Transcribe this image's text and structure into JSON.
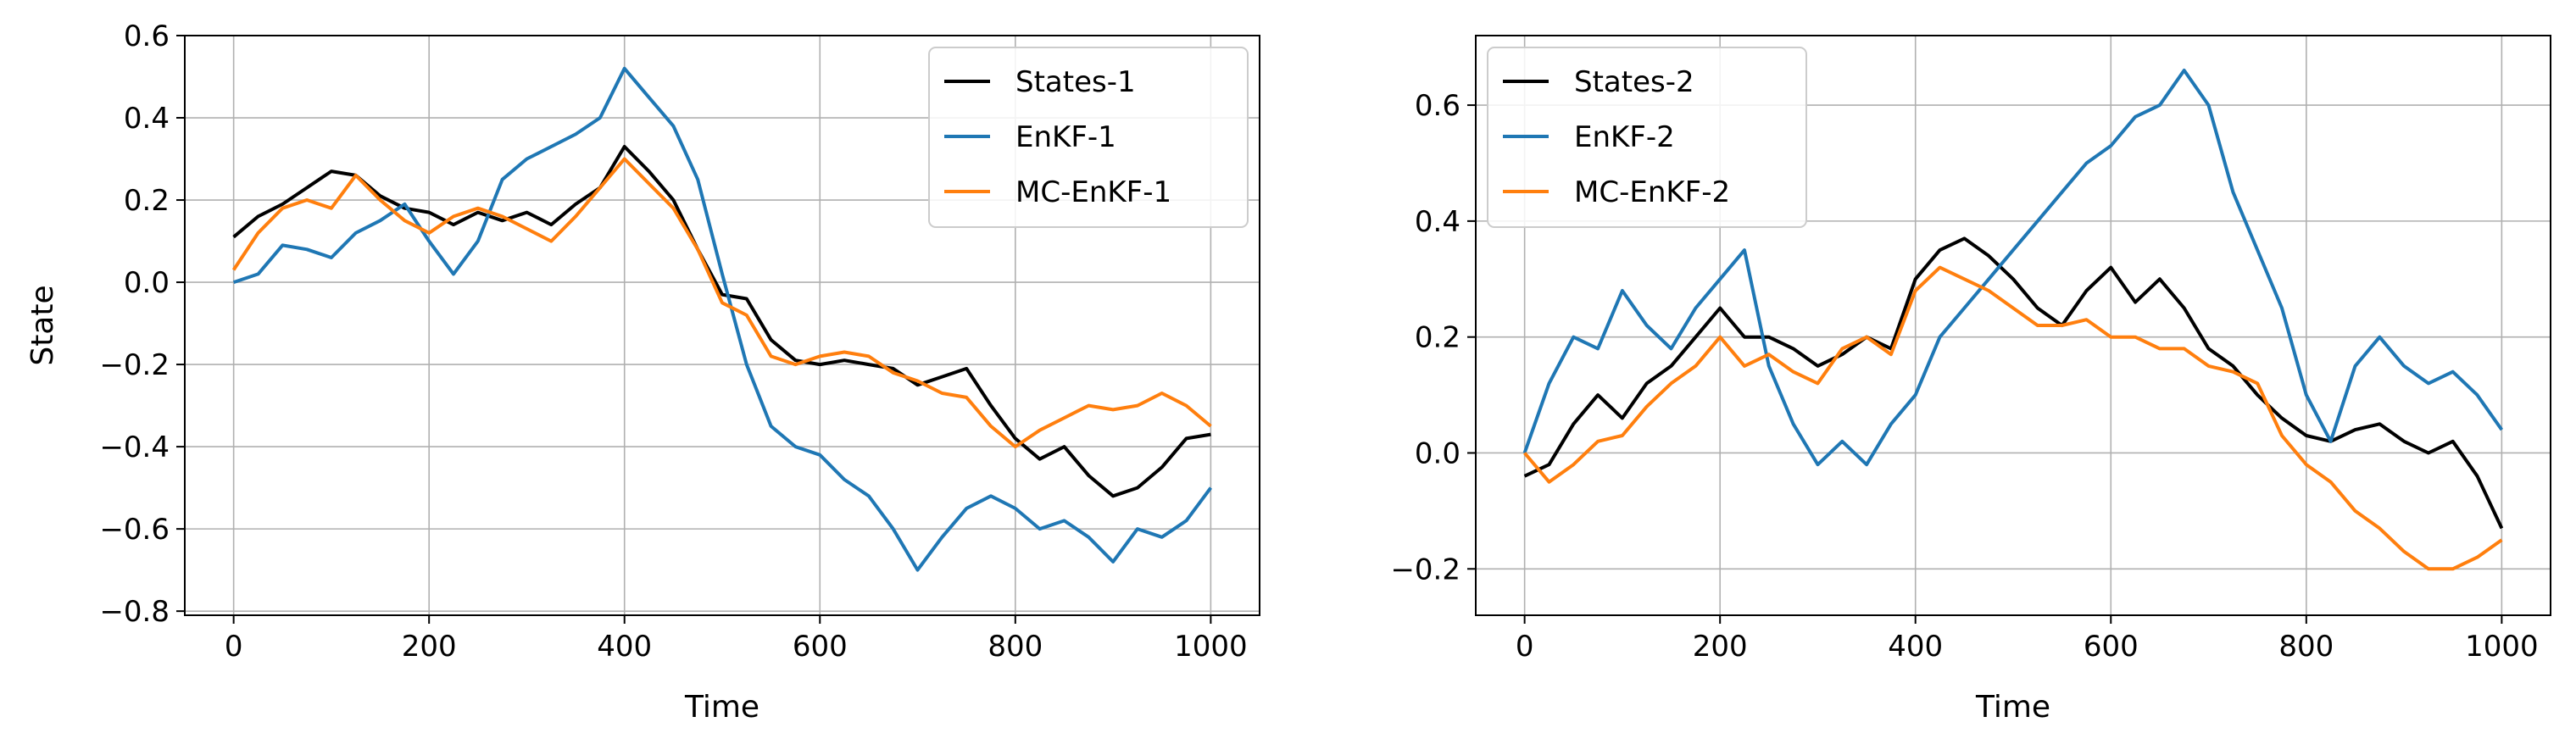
{
  "chart_data": [
    {
      "type": "line",
      "xlabel": "Time",
      "ylabel": "State",
      "xlim": [
        -50,
        1050
      ],
      "ylim": [
        -0.81,
        0.6
      ],
      "xticks": [
        0,
        200,
        400,
        600,
        800,
        1000
      ],
      "yticks": [
        -0.8,
        -0.6,
        -0.4,
        -0.2,
        0.0,
        0.2,
        0.4,
        0.6
      ],
      "xtick_labels": [
        "0",
        "200",
        "400",
        "600",
        "800",
        "1000"
      ],
      "ytick_labels": [
        "−0.8",
        "−0.6",
        "−0.4",
        "−0.2",
        "0.0",
        "0.2",
        "0.4",
        "0.6"
      ],
      "grid": true,
      "legend_position": "top-right",
      "series": [
        {
          "name": "States-1",
          "color": "#000000",
          "x": [
            0,
            25,
            50,
            75,
            100,
            125,
            150,
            175,
            200,
            225,
            250,
            275,
            300,
            325,
            350,
            375,
            400,
            425,
            450,
            475,
            500,
            525,
            550,
            575,
            600,
            625,
            650,
            675,
            700,
            725,
            750,
            775,
            800,
            825,
            850,
            875,
            900,
            925,
            950,
            975,
            1000
          ],
          "values": [
            0.11,
            0.16,
            0.19,
            0.23,
            0.27,
            0.26,
            0.21,
            0.18,
            0.17,
            0.14,
            0.17,
            0.15,
            0.17,
            0.14,
            0.19,
            0.23,
            0.33,
            0.27,
            0.2,
            0.08,
            -0.03,
            -0.04,
            -0.14,
            -0.19,
            -0.2,
            -0.19,
            -0.2,
            -0.21,
            -0.25,
            -0.23,
            -0.21,
            -0.3,
            -0.38,
            -0.43,
            -0.4,
            -0.47,
            -0.52,
            -0.5,
            -0.45,
            -0.38,
            -0.37
          ]
        },
        {
          "name": "EnKF-1",
          "color": "#1f77b4",
          "x": [
            0,
            25,
            50,
            75,
            100,
            125,
            150,
            175,
            200,
            225,
            250,
            275,
            300,
            325,
            350,
            375,
            400,
            425,
            450,
            475,
            500,
            525,
            550,
            575,
            600,
            625,
            650,
            675,
            700,
            725,
            750,
            775,
            800,
            825,
            850,
            875,
            900,
            925,
            950,
            975,
            1000
          ],
          "values": [
            0.0,
            0.02,
            0.09,
            0.08,
            0.06,
            0.12,
            0.15,
            0.19,
            0.1,
            0.02,
            0.1,
            0.25,
            0.3,
            0.33,
            0.36,
            0.4,
            0.52,
            0.45,
            0.38,
            0.25,
            0.02,
            -0.2,
            -0.35,
            -0.4,
            -0.42,
            -0.48,
            -0.52,
            -0.6,
            -0.7,
            -0.62,
            -0.55,
            -0.52,
            -0.55,
            -0.6,
            -0.58,
            -0.62,
            -0.68,
            -0.6,
            -0.62,
            -0.58,
            -0.5
          ]
        },
        {
          "name": "MC-EnKF-1",
          "color": "#ff7f0e",
          "x": [
            0,
            25,
            50,
            75,
            100,
            125,
            150,
            175,
            200,
            225,
            250,
            275,
            300,
            325,
            350,
            375,
            400,
            425,
            450,
            475,
            500,
            525,
            550,
            575,
            600,
            625,
            650,
            675,
            700,
            725,
            750,
            775,
            800,
            825,
            850,
            875,
            900,
            925,
            950,
            975,
            1000
          ],
          "values": [
            0.03,
            0.12,
            0.18,
            0.2,
            0.18,
            0.26,
            0.2,
            0.15,
            0.12,
            0.16,
            0.18,
            0.16,
            0.13,
            0.1,
            0.16,
            0.23,
            0.3,
            0.24,
            0.18,
            0.08,
            -0.05,
            -0.08,
            -0.18,
            -0.2,
            -0.18,
            -0.17,
            -0.18,
            -0.22,
            -0.24,
            -0.27,
            -0.28,
            -0.35,
            -0.4,
            -0.36,
            -0.33,
            -0.3,
            -0.31,
            -0.3,
            -0.27,
            -0.3,
            -0.35
          ]
        }
      ]
    },
    {
      "type": "line",
      "xlabel": "Time",
      "ylabel": "",
      "xlim": [
        -50,
        1050
      ],
      "ylim": [
        -0.28,
        0.72
      ],
      "xticks": [
        0,
        200,
        400,
        600,
        800,
        1000
      ],
      "yticks": [
        -0.2,
        0.0,
        0.2,
        0.4,
        0.6
      ],
      "xtick_labels": [
        "0",
        "200",
        "400",
        "600",
        "800",
        "1000"
      ],
      "ytick_labels": [
        "−0.2",
        "0.0",
        "0.2",
        "0.4",
        "0.6"
      ],
      "grid": true,
      "legend_position": "top-left",
      "series": [
        {
          "name": "States-2",
          "color": "#000000",
          "x": [
            0,
            25,
            50,
            75,
            100,
            125,
            150,
            175,
            200,
            225,
            250,
            275,
            300,
            325,
            350,
            375,
            400,
            425,
            450,
            475,
            500,
            525,
            550,
            575,
            600,
            625,
            650,
            675,
            700,
            725,
            750,
            775,
            800,
            825,
            850,
            875,
            900,
            925,
            950,
            975,
            1000
          ],
          "values": [
            -0.04,
            -0.02,
            0.05,
            0.1,
            0.06,
            0.12,
            0.15,
            0.2,
            0.25,
            0.2,
            0.2,
            0.18,
            0.15,
            0.17,
            0.2,
            0.18,
            0.3,
            0.35,
            0.37,
            0.34,
            0.3,
            0.25,
            0.22,
            0.28,
            0.32,
            0.26,
            0.3,
            0.25,
            0.18,
            0.15,
            0.1,
            0.06,
            0.03,
            0.02,
            0.04,
            0.05,
            0.02,
            0.0,
            0.02,
            -0.04,
            -0.13
          ]
        },
        {
          "name": "EnKF-2",
          "color": "#1f77b4",
          "x": [
            0,
            25,
            50,
            75,
            100,
            125,
            150,
            175,
            200,
            225,
            250,
            275,
            300,
            325,
            350,
            375,
            400,
            425,
            450,
            475,
            500,
            525,
            550,
            575,
            600,
            625,
            650,
            675,
            700,
            725,
            750,
            775,
            800,
            825,
            850,
            875,
            900,
            925,
            950,
            975,
            1000
          ],
          "values": [
            0.0,
            0.12,
            0.2,
            0.18,
            0.28,
            0.22,
            0.18,
            0.25,
            0.3,
            0.35,
            0.15,
            0.05,
            -0.02,
            0.02,
            -0.02,
            0.05,
            0.1,
            0.2,
            0.25,
            0.3,
            0.35,
            0.4,
            0.45,
            0.5,
            0.53,
            0.58,
            0.6,
            0.66,
            0.6,
            0.45,
            0.35,
            0.25,
            0.1,
            0.02,
            0.15,
            0.2,
            0.15,
            0.12,
            0.14,
            0.1,
            0.04
          ]
        },
        {
          "name": "MC-EnKF-2",
          "color": "#ff7f0e",
          "x": [
            0,
            25,
            50,
            75,
            100,
            125,
            150,
            175,
            200,
            225,
            250,
            275,
            300,
            325,
            350,
            375,
            400,
            425,
            450,
            475,
            500,
            525,
            550,
            575,
            600,
            625,
            650,
            675,
            700,
            725,
            750,
            775,
            800,
            825,
            850,
            875,
            900,
            925,
            950,
            975,
            1000
          ],
          "values": [
            0.0,
            -0.05,
            -0.02,
            0.02,
            0.03,
            0.08,
            0.12,
            0.15,
            0.2,
            0.15,
            0.17,
            0.14,
            0.12,
            0.18,
            0.2,
            0.17,
            0.28,
            0.32,
            0.3,
            0.28,
            0.25,
            0.22,
            0.22,
            0.23,
            0.2,
            0.2,
            0.18,
            0.18,
            0.15,
            0.14,
            0.12,
            0.03,
            -0.02,
            -0.05,
            -0.1,
            -0.13,
            -0.17,
            -0.2,
            -0.2,
            -0.18,
            -0.15
          ]
        }
      ]
    }
  ]
}
